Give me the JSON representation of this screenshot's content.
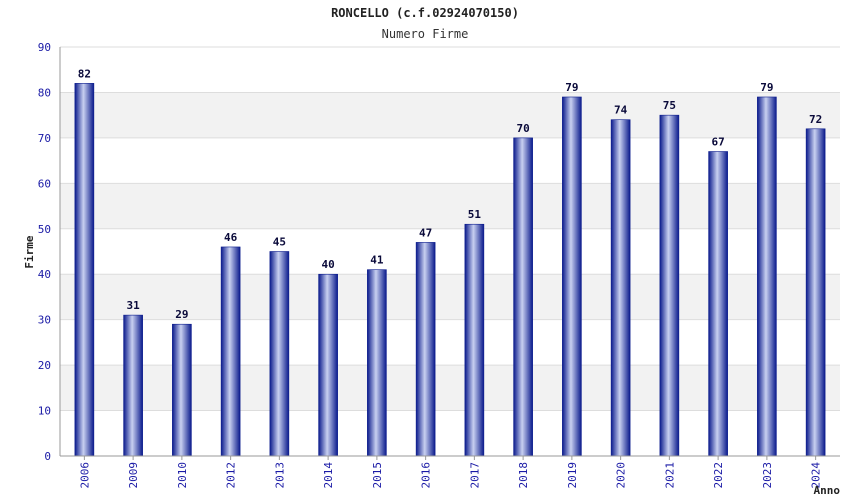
{
  "chart_data": {
    "type": "bar",
    "title": "RONCELLO (c.f.02924070150)",
    "subtitle": "Numero Firme",
    "xlabel": "Anno",
    "ylabel": "Firme",
    "ylim": [
      0,
      90
    ],
    "ytick_step": 10,
    "grid": true,
    "categories": [
      "2006",
      "2009",
      "2010",
      "2012",
      "2013",
      "2014",
      "2015",
      "2016",
      "2017",
      "2018",
      "2019",
      "2020",
      "2021",
      "2022",
      "2023",
      "2024"
    ],
    "values": [
      82,
      31,
      29,
      46,
      45,
      40,
      41,
      47,
      51,
      70,
      79,
      74,
      75,
      67,
      79,
      72
    ],
    "colors": {
      "bar_dark": "#0a1a8c",
      "bar_light": "#c8d0f0",
      "band": "#f2f2f2",
      "tick_text": "#1a1aa6"
    }
  }
}
